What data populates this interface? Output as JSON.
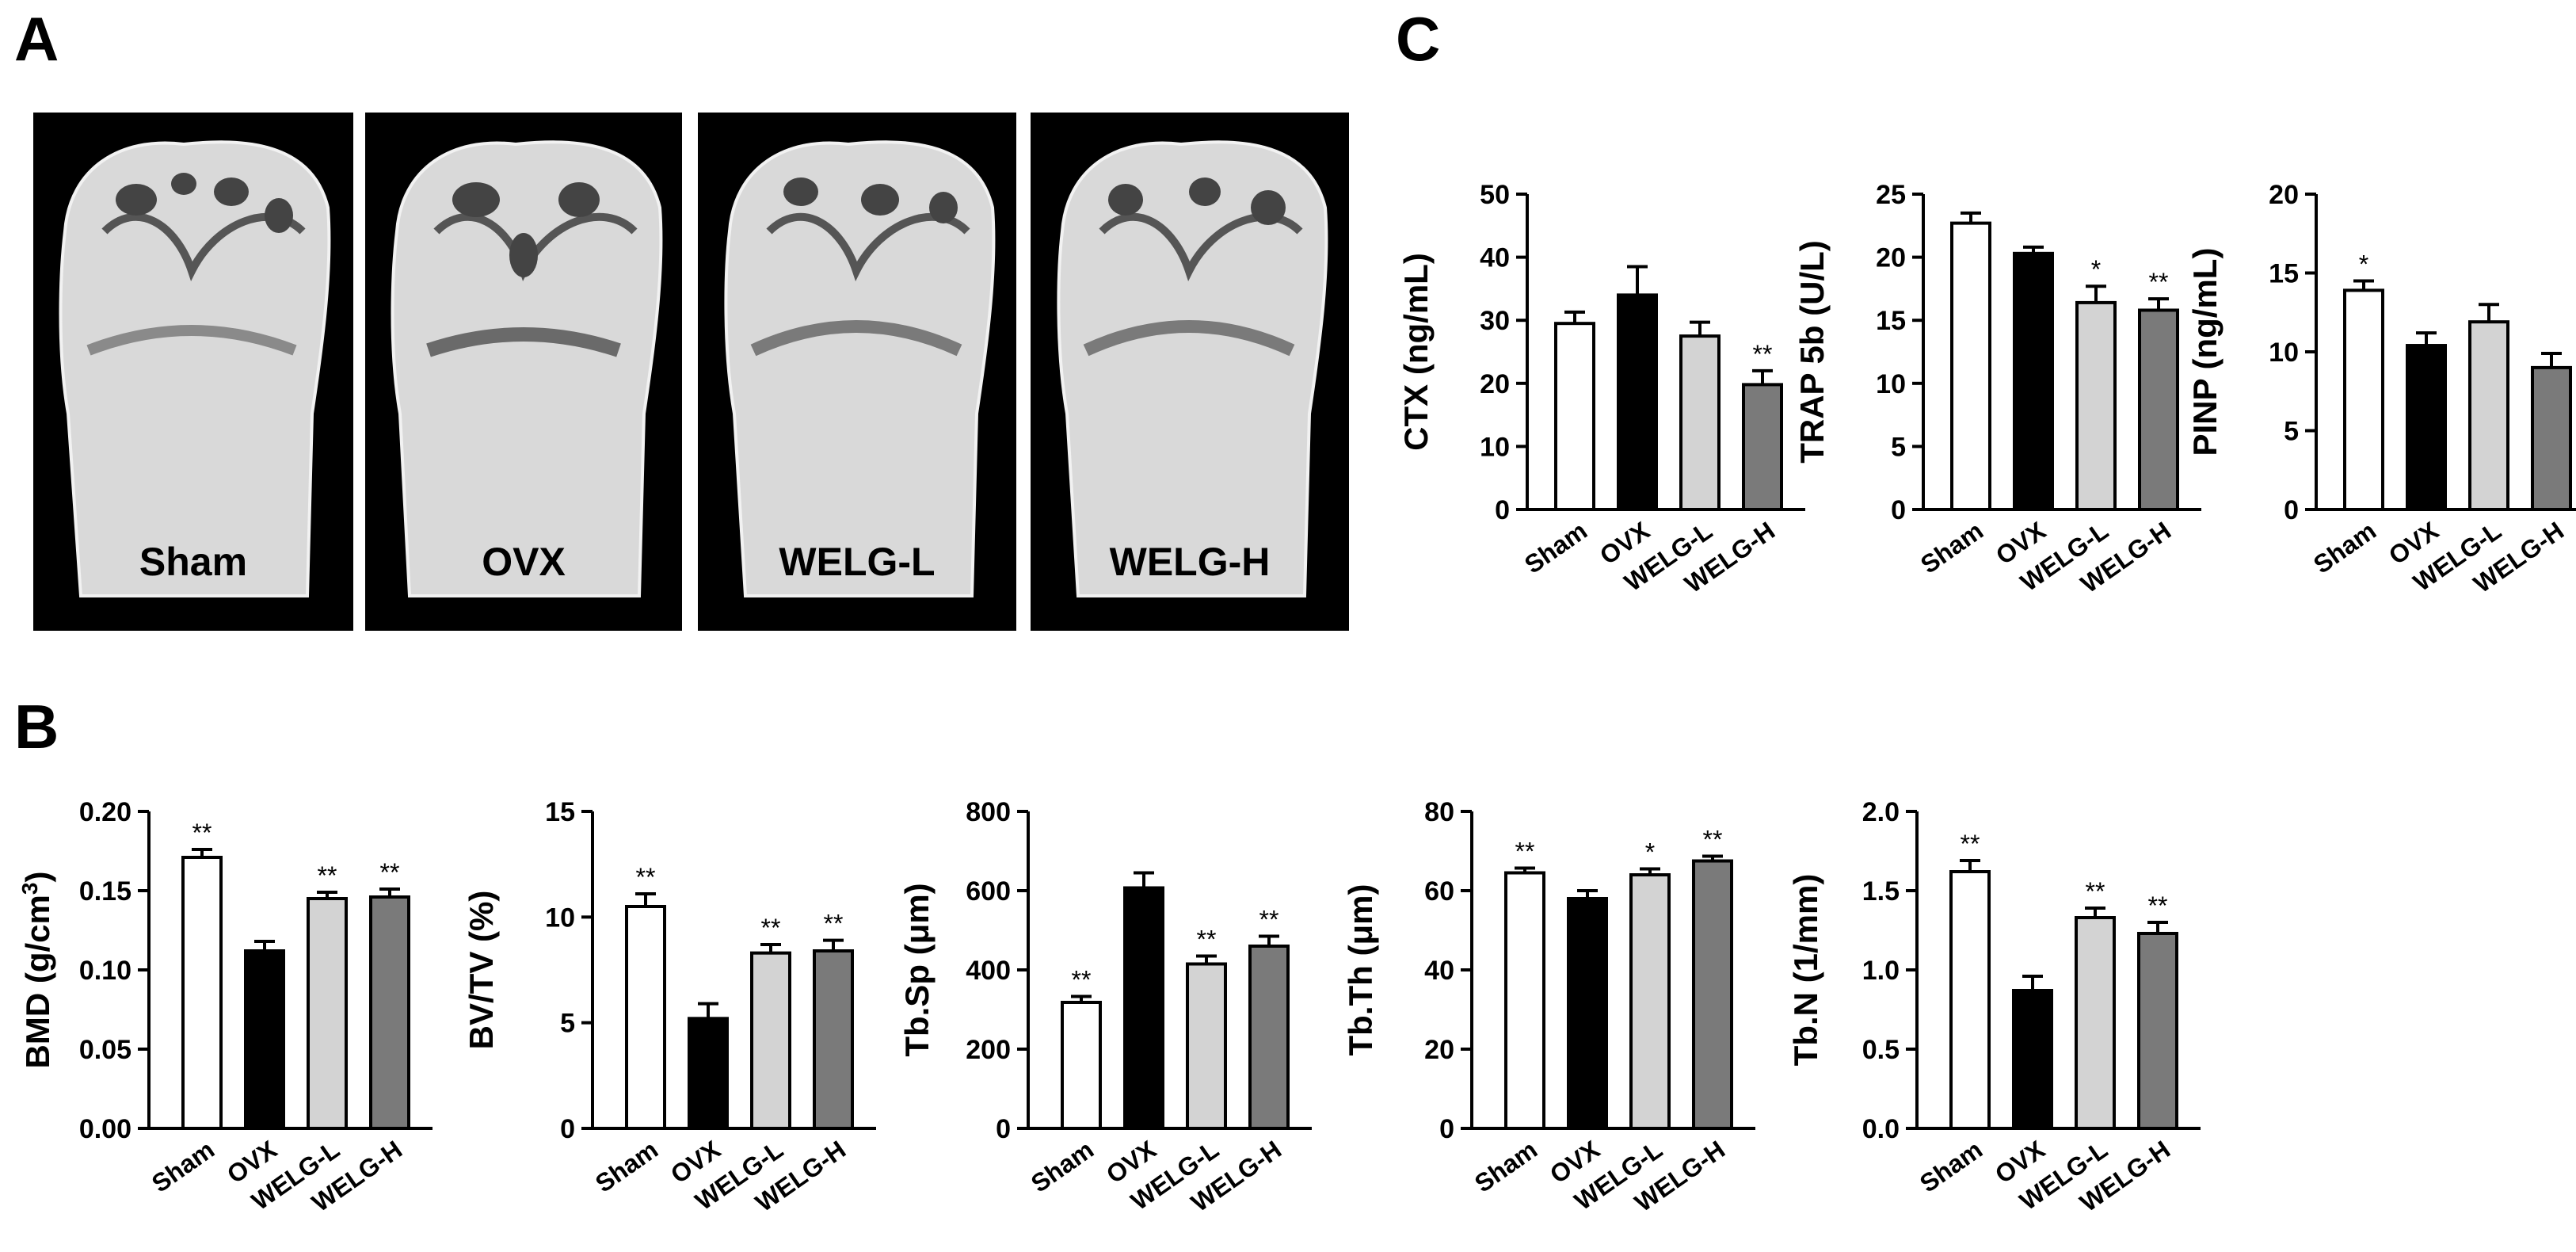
{
  "panel_labels": {
    "a": "A",
    "b": "B",
    "c": "C"
  },
  "bone_images": [
    {
      "label": "Sham"
    },
    {
      "label": "OVX"
    },
    {
      "label": "WELG-L"
    },
    {
      "label": "WELG-H"
    }
  ],
  "colors": {
    "Sham": "#ffffff",
    "OVX": "#000000",
    "WELG-L": "#d3d3d3",
    "WELG-H": "#7a7a7a",
    "bone_background": "#000000",
    "bone_fill": "#d9d9d9"
  },
  "chart_data": [
    {
      "id": "cb1",
      "type": "bar",
      "categories": [
        "Sham",
        "OVX",
        "WELG-L",
        "WELG-H"
      ],
      "values": [
        0.171,
        0.112,
        0.145,
        0.146
      ],
      "errors": [
        0.005,
        0.006,
        0.004,
        0.005
      ],
      "significance": [
        "**",
        "",
        "**",
        "**"
      ],
      "ylabel": "BMD (g/cm",
      "ylabel_sup": "3",
      "ylabel_tail": ")",
      "ylim": [
        0,
        0.2
      ],
      "yticks": [
        "0.00",
        "0.05",
        "0.10",
        "0.15",
        "0.20"
      ]
    },
    {
      "id": "cb2",
      "type": "bar",
      "categories": [
        "Sham",
        "OVX",
        "WELG-L",
        "WELG-H"
      ],
      "values": [
        10.5,
        5.2,
        8.3,
        8.4
      ],
      "errors": [
        0.6,
        0.7,
        0.4,
        0.5
      ],
      "significance": [
        "**",
        "",
        "**",
        "**"
      ],
      "ylabel": "BV/TV (%)",
      "ylim": [
        0,
        15
      ],
      "yticks": [
        "0",
        "5",
        "10",
        "15"
      ]
    },
    {
      "id": "cb3",
      "type": "bar",
      "categories": [
        "Sham",
        "OVX",
        "WELG-L",
        "WELG-H"
      ],
      "values": [
        318,
        607,
        415,
        460
      ],
      "errors": [
        15,
        38,
        20,
        25
      ],
      "significance": [
        "**",
        "",
        "**",
        "**"
      ],
      "ylabel": "Tb.Sp (μm)",
      "ylim": [
        0,
        800
      ],
      "yticks": [
        "0",
        "200",
        "400",
        "600",
        "800"
      ]
    },
    {
      "id": "cb4",
      "type": "bar",
      "categories": [
        "Sham",
        "OVX",
        "WELG-L",
        "WELG-H"
      ],
      "values": [
        64.5,
        58.0,
        64.0,
        67.5
      ],
      "errors": [
        1.2,
        2.0,
        1.5,
        1.2
      ],
      "significance": [
        "**",
        "",
        "*",
        "**"
      ],
      "ylabel": "Tb.Th (μm)",
      "ylim": [
        0,
        80
      ],
      "yticks": [
        "0",
        "20",
        "40",
        "60",
        "80"
      ]
    },
    {
      "id": "cb5",
      "type": "bar",
      "categories": [
        "Sham",
        "OVX",
        "WELG-L",
        "WELG-H"
      ],
      "values": [
        1.62,
        0.87,
        1.33,
        1.23
      ],
      "errors": [
        0.07,
        0.09,
        0.06,
        0.07
      ],
      "significance": [
        "**",
        "",
        "**",
        "**"
      ],
      "ylabel": "Tb.N (1/mm)",
      "ylim": [
        0,
        2.0
      ],
      "yticks": [
        "0.0",
        "0.5",
        "1.0",
        "1.5",
        "2.0"
      ]
    },
    {
      "id": "cc1",
      "type": "bar",
      "categories": [
        "Sham",
        "OVX",
        "WELG-L",
        "WELG-H"
      ],
      "values": [
        29.5,
        34.0,
        27.5,
        19.8
      ],
      "errors": [
        1.8,
        4.5,
        2.2,
        2.2
      ],
      "significance": [
        "",
        "",
        "",
        "**"
      ],
      "ylabel": "CTX (ng/mL)",
      "ylim": [
        0,
        50
      ],
      "yticks": [
        "0",
        "10",
        "20",
        "30",
        "40",
        "50"
      ]
    },
    {
      "id": "cc2",
      "type": "bar",
      "categories": [
        "Sham",
        "OVX",
        "WELG-L",
        "WELG-H"
      ],
      "values": [
        22.7,
        20.3,
        16.4,
        15.8
      ],
      "errors": [
        0.8,
        0.5,
        1.3,
        0.9
      ],
      "significance": [
        "",
        "",
        "*",
        "**"
      ],
      "ylabel": "TRAP 5b (U/L)",
      "ylim": [
        0,
        25
      ],
      "yticks": [
        "0",
        "5",
        "10",
        "15",
        "20",
        "25"
      ]
    },
    {
      "id": "cc3",
      "type": "bar",
      "categories": [
        "Sham",
        "OVX",
        "WELG-L",
        "WELG-H"
      ],
      "values": [
        13.9,
        10.4,
        11.9,
        9.0
      ],
      "errors": [
        0.6,
        0.8,
        1.1,
        0.9
      ],
      "significance": [
        "*",
        "",
        "",
        ""
      ],
      "ylabel": "PINP (ng/mL)",
      "ylim": [
        0,
        20
      ],
      "yticks": [
        "0",
        "5",
        "10",
        "15",
        "20"
      ]
    }
  ]
}
